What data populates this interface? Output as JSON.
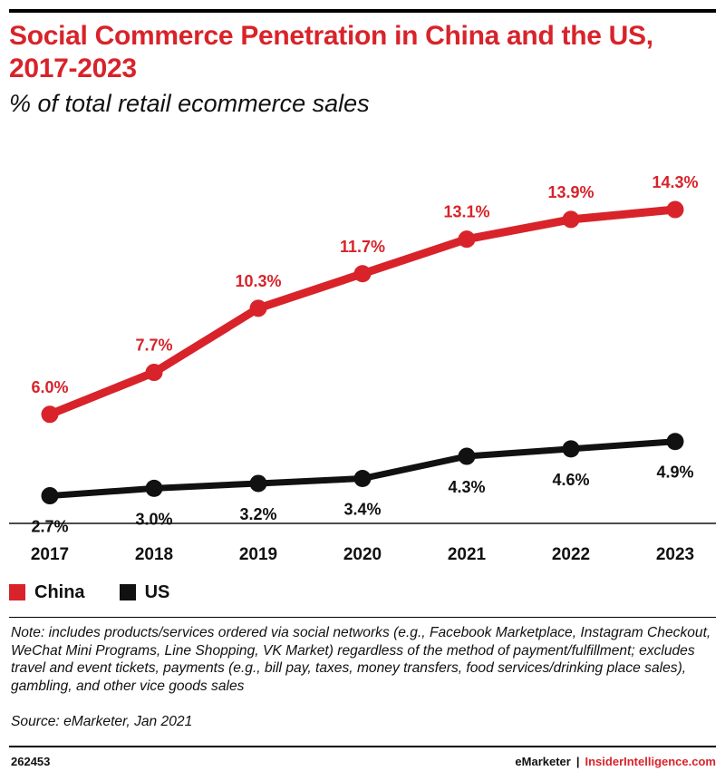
{
  "header": {
    "title": "Social Commerce Penetration in China and the US, 2017-2023",
    "subtitle": "% of total retail ecommerce sales"
  },
  "colors": {
    "china": "#d8232a",
    "us": "#111111",
    "title": "#d8232a",
    "axis": "#111111"
  },
  "chart_data": {
    "type": "line",
    "title": "Social Commerce Penetration in China and the US, 2017-2023",
    "subtitle": "% of total retail ecommerce sales",
    "xlabel": "",
    "ylabel": "",
    "x": [
      "2017",
      "2018",
      "2019",
      "2020",
      "2021",
      "2022",
      "2023"
    ],
    "ylim": [
      0,
      16
    ],
    "grid": false,
    "legend_position": "bottom-left",
    "series": [
      {
        "name": "China",
        "color": "#d8232a",
        "values": [
          6.0,
          7.7,
          10.3,
          11.7,
          13.1,
          13.9,
          14.3
        ],
        "labels": [
          "6.0%",
          "7.7%",
          "10.3%",
          "11.7%",
          "13.1%",
          "13.9%",
          "14.3%"
        ],
        "label_position": "above"
      },
      {
        "name": "US",
        "color": "#111111",
        "values": [
          2.7,
          3.0,
          3.2,
          3.4,
          4.3,
          4.6,
          4.9
        ],
        "labels": [
          "2.7%",
          "3.0%",
          "3.2%",
          "3.4%",
          "4.3%",
          "4.6%",
          "4.9%"
        ],
        "label_position": "below"
      }
    ]
  },
  "legend": [
    {
      "label": "China",
      "color": "#d8232a"
    },
    {
      "label": "US",
      "color": "#111111"
    }
  ],
  "note": "Note: includes products/services ordered via social networks (e.g., Facebook Marketplace, Instagram Checkout, WeChat Mini Programs, Line Shopping, VK Market) regardless of the method of payment/fulfillment; excludes travel and event tickets, payments (e.g., bill pay, taxes, money transfers, food services/drinking place sales), gambling, and other vice goods sales",
  "source": "Source: eMarketer, Jan 2021",
  "footer": {
    "chart_id": "262453",
    "brand_left": "eMarketer",
    "separator": "|",
    "brand_right": "InsiderIntelligence.com"
  }
}
